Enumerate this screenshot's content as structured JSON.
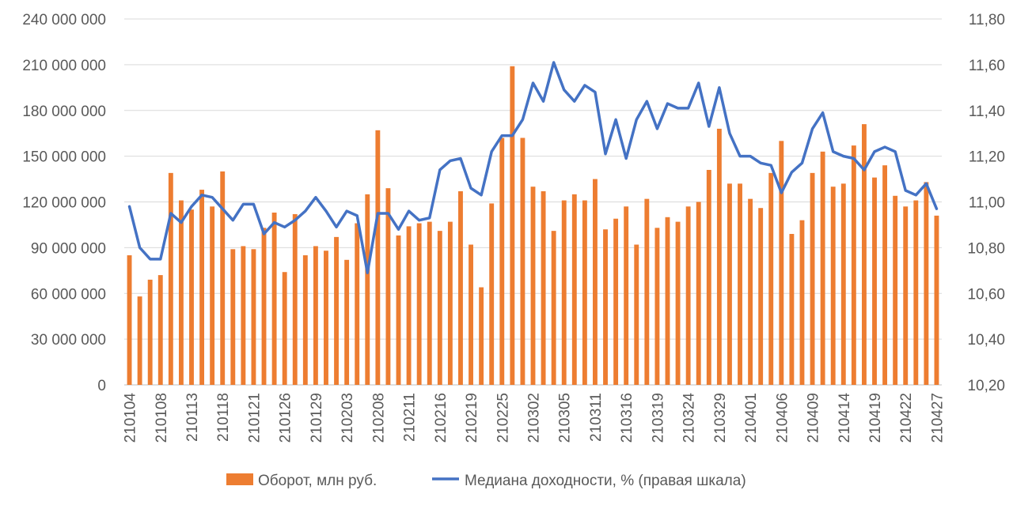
{
  "chart_data": {
    "type": "bar+line",
    "left_axis": {
      "ylim": [
        0,
        240000000
      ],
      "ticks": [
        "0",
        "30 000 000",
        "60 000 000",
        "90 000 000",
        "120 000 000",
        "150 000 000",
        "180 000 000",
        "210 000 000",
        "240 000 000"
      ]
    },
    "right_axis": {
      "ylim": [
        10.2,
        11.8
      ],
      "ticks": [
        "10,20",
        "10,40",
        "10,60",
        "10,80",
        "11,00",
        "11,20",
        "11,40",
        "11,60",
        "11,80"
      ]
    },
    "x_tick_labels": [
      "210104",
      "210108",
      "210113",
      "210118",
      "210121",
      "210126",
      "210129",
      "210203",
      "210208",
      "210211",
      "210216",
      "210219",
      "210225",
      "210302",
      "210305",
      "210311",
      "210316",
      "210319",
      "210324",
      "210329",
      "210401",
      "210406",
      "210409",
      "210414",
      "210419",
      "210422",
      "210427"
    ],
    "grid": "horizontal",
    "legend_position": "bottom",
    "series": [
      {
        "name": "Оборот, млн руб.",
        "type": "bar",
        "axis": "left",
        "color": "#ED7D31",
        "values": [
          85000000,
          58000000,
          69000000,
          72000000,
          139000000,
          121000000,
          115000000,
          128000000,
          117000000,
          140000000,
          89000000,
          91000000,
          89000000,
          103000000,
          113000000,
          74000000,
          112000000,
          85000000,
          91000000,
          88000000,
          97000000,
          82000000,
          106000000,
          125000000,
          167000000,
          129000000,
          98000000,
          104000000,
          106000000,
          107000000,
          101000000,
          107000000,
          127000000,
          92000000,
          64000000,
          119000000,
          162000000,
          209000000,
          162000000,
          130000000,
          127000000,
          101000000,
          121000000,
          125000000,
          121000000,
          135000000,
          102000000,
          109000000,
          117000000,
          92000000,
          122000000,
          103000000,
          110000000,
          107000000,
          117000000,
          120000000,
          141000000,
          168000000,
          132000000,
          132000000,
          122000000,
          116000000,
          139000000,
          160000000,
          99000000,
          108000000,
          139000000,
          153000000,
          130000000,
          132000000,
          157000000,
          171000000,
          136000000,
          144000000,
          124000000,
          117000000,
          121000000,
          133000000,
          111000000
        ]
      },
      {
        "name": "Медиана доходности, % (правая шкала)",
        "type": "line",
        "axis": "right",
        "color": "#4472C4",
        "values": [
          10.98,
          10.8,
          10.75,
          10.75,
          10.95,
          10.91,
          10.98,
          11.03,
          11.02,
          10.97,
          10.92,
          10.99,
          10.99,
          10.86,
          10.91,
          10.89,
          10.92,
          10.96,
          11.02,
          10.96,
          10.89,
          10.96,
          10.94,
          10.69,
          10.95,
          10.95,
          10.88,
          10.96,
          10.92,
          10.93,
          11.14,
          11.18,
          11.19,
          11.06,
          11.03,
          11.22,
          11.29,
          11.29,
          11.36,
          11.52,
          11.44,
          11.61,
          11.49,
          11.44,
          11.51,
          11.48,
          11.21,
          11.36,
          11.19,
          11.36,
          11.44,
          11.32,
          11.43,
          11.41,
          11.41,
          11.52,
          11.33,
          11.5,
          11.3,
          11.2,
          11.2,
          11.17,
          11.16,
          11.04,
          11.13,
          11.17,
          11.32,
          11.39,
          11.22,
          11.2,
          11.19,
          11.14,
          11.22,
          11.24,
          11.22,
          11.05,
          11.03,
          11.08,
          10.97
        ]
      }
    ]
  }
}
